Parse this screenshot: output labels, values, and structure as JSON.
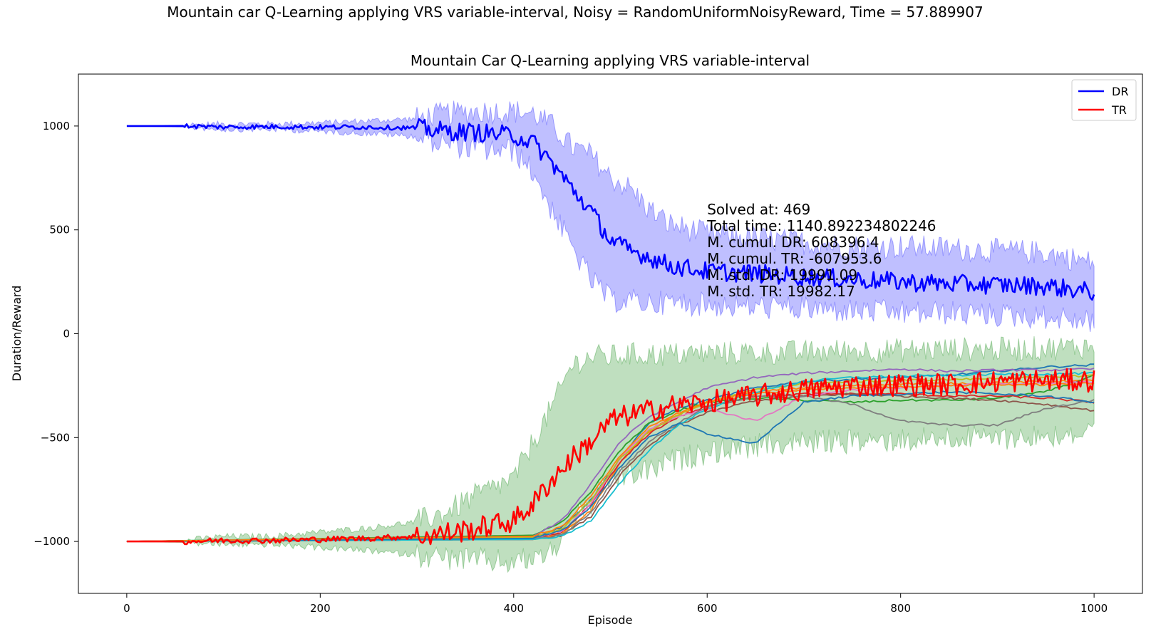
{
  "suptitle": "Mountain car Q-Learning applying VRS variable-interval, Noisy = RandomUniformNoisyReward, Time = 57.889907",
  "chart_data": {
    "type": "line",
    "title": "Mountain Car Q-Learning applying VRS variable-interval",
    "xlabel": "Episode",
    "ylabel": "Duration/Reward",
    "xlim": [
      -50,
      1050
    ],
    "ylim": [
      -1250,
      1250
    ],
    "xticks": [
      0,
      200,
      400,
      600,
      800,
      1000
    ],
    "yticks": [
      -1000,
      -500,
      0,
      500,
      1000
    ],
    "grid": false,
    "legend_position": "top-right",
    "legend": [
      {
        "name": "DR",
        "color": "#0000ff"
      },
      {
        "name": "TR",
        "color": "#ff0000"
      }
    ],
    "series": [
      {
        "name": "DR",
        "color": "#0000ff",
        "band_color": "#0000ff",
        "x": [
          0,
          60,
          100,
          150,
          200,
          250,
          300,
          330,
          360,
          400,
          420,
          440,
          460,
          480,
          500,
          520,
          540,
          560,
          600,
          650,
          700,
          750,
          800,
          850,
          900,
          950,
          1000
        ],
        "mean": [
          1000,
          1000,
          995,
          997,
          995,
          995,
          990,
          975,
          970,
          955,
          920,
          820,
          700,
          590,
          450,
          400,
          370,
          330,
          300,
          290,
          275,
          262,
          250,
          240,
          235,
          230,
          200
        ],
        "lower": [
          1000,
          995,
          985,
          985,
          975,
          965,
          950,
          915,
          890,
          880,
          780,
          590,
          420,
          260,
          160,
          160,
          150,
          150,
          140,
          130,
          120,
          110,
          100,
          100,
          90,
          80,
          60
        ],
        "upper": [
          1000,
          1005,
          1010,
          1010,
          1015,
          1025,
          1035,
          1060,
          1070,
          1070,
          1060,
          1000,
          900,
          860,
          750,
          700,
          600,
          530,
          480,
          460,
          440,
          420,
          420,
          410,
          400,
          390,
          340
        ]
      },
      {
        "name": "TR",
        "color": "#ff0000",
        "band_color": "#008000",
        "x": [
          0,
          60,
          100,
          150,
          200,
          250,
          300,
          330,
          360,
          400,
          420,
          440,
          460,
          480,
          500,
          520,
          540,
          560,
          600,
          650,
          700,
          750,
          800,
          850,
          900,
          950,
          1000
        ],
        "mean": [
          -1000,
          -1000,
          -995,
          -995,
          -990,
          -985,
          -975,
          -960,
          -940,
          -900,
          -820,
          -700,
          -600,
          -520,
          -420,
          -390,
          -370,
          -350,
          -330,
          -300,
          -270,
          -250,
          -245,
          -245,
          -230,
          -225,
          -225
        ],
        "lower": [
          -1000,
          -1005,
          -1015,
          -1015,
          -1030,
          -1045,
          -1065,
          -1080,
          -1090,
          -1100,
          -1080,
          -1050,
          -900,
          -820,
          -700,
          -680,
          -660,
          -620,
          -570,
          -540,
          -520,
          -520,
          -510,
          -500,
          -500,
          -490,
          -480
        ],
        "upper": [
          -1000,
          -995,
          -975,
          -975,
          -955,
          -935,
          -905,
          -860,
          -780,
          -700,
          -520,
          -350,
          -150,
          -110,
          -110,
          -100,
          -100,
          -100,
          -95,
          -90,
          -90,
          -80,
          -80,
          -75,
          -75,
          -70,
          -60
        ]
      }
    ],
    "individual_runs": {
      "x": [
        0,
        420,
        450,
        480,
        510,
        540,
        570,
        600,
        650,
        700,
        750,
        800,
        850,
        900,
        950,
        1000
      ],
      "runs": [
        {
          "color": "#1f77b4",
          "y": [
            -1000,
            -980,
            -930,
            -800,
            -600,
            -430,
            -360,
            -320,
            -260,
            -230,
            -220,
            -210,
            -200,
            -180,
            -160,
            -150
          ]
        },
        {
          "color": "#ff7f0e",
          "y": [
            -1000,
            -985,
            -960,
            -850,
            -620,
            -470,
            -390,
            -330,
            -280,
            -260,
            -250,
            -240,
            -240,
            -235,
            -230,
            -225
          ]
        },
        {
          "color": "#2ca02c",
          "y": [
            -1000,
            -970,
            -910,
            -760,
            -560,
            -430,
            -370,
            -330,
            -310,
            -320,
            -330,
            -320,
            -320,
            -310,
            -280,
            -200
          ]
        },
        {
          "color": "#d62728",
          "y": [
            -1000,
            -990,
            -960,
            -820,
            -620,
            -480,
            -400,
            -350,
            -300,
            -290,
            -290,
            -290,
            -300,
            -300,
            -310,
            -330
          ]
        },
        {
          "color": "#9467bd",
          "y": [
            -1000,
            -975,
            -900,
            -720,
            -520,
            -400,
            -330,
            -260,
            -210,
            -190,
            -180,
            -170,
            -180,
            -175,
            -175,
            -170
          ]
        },
        {
          "color": "#8c564b",
          "y": [
            -1000,
            -990,
            -970,
            -880,
            -680,
            -540,
            -440,
            -380,
            -320,
            -300,
            -290,
            -300,
            -310,
            -320,
            -340,
            -370
          ]
        },
        {
          "color": "#e377c2",
          "y": [
            -1000,
            -985,
            -950,
            -820,
            -600,
            -460,
            -400,
            -360,
            -420,
            -300,
            -270,
            -260,
            -250,
            -240,
            -240,
            -230
          ]
        },
        {
          "color": "#7f7f7f",
          "y": [
            -1000,
            -990,
            -970,
            -860,
            -660,
            -520,
            -430,
            -350,
            -300,
            -300,
            -340,
            -420,
            -440,
            -440,
            -360,
            -320
          ]
        },
        {
          "color": "#bcbd22",
          "y": [
            -1000,
            -980,
            -940,
            -800,
            -600,
            -470,
            -390,
            -330,
            -270,
            -240,
            -230,
            -225,
            -220,
            -215,
            -210,
            -200
          ]
        },
        {
          "color": "#17becf",
          "y": [
            -1000,
            -990,
            -975,
            -900,
            -720,
            -560,
            -440,
            -360,
            -280,
            -230,
            -210,
            -205,
            -200,
            -195,
            -195,
            -190
          ]
        },
        {
          "color": "#1f77b4",
          "y": [
            -1000,
            -985,
            -950,
            -830,
            -640,
            -500,
            -430,
            -480,
            -530,
            -330,
            -300,
            -290,
            -280,
            -290,
            -300,
            -330
          ]
        },
        {
          "color": "#ff7f0e",
          "y": [
            -1000,
            -975,
            -930,
            -780,
            -590,
            -450,
            -380,
            -330,
            -290,
            -270,
            -260,
            -255,
            -250,
            -245,
            -245,
            -240
          ]
        }
      ]
    },
    "annotation": {
      "x": 600,
      "y": 575,
      "lines": [
        "Solved at: 469",
        "Total time: 1140.892234802246",
        "M. cumul. DR: 608396.4",
        "M. cumul. TR: -607953.6",
        "M. std. DR: 19991.09",
        "M. std. TR: 19982.17"
      ]
    }
  }
}
